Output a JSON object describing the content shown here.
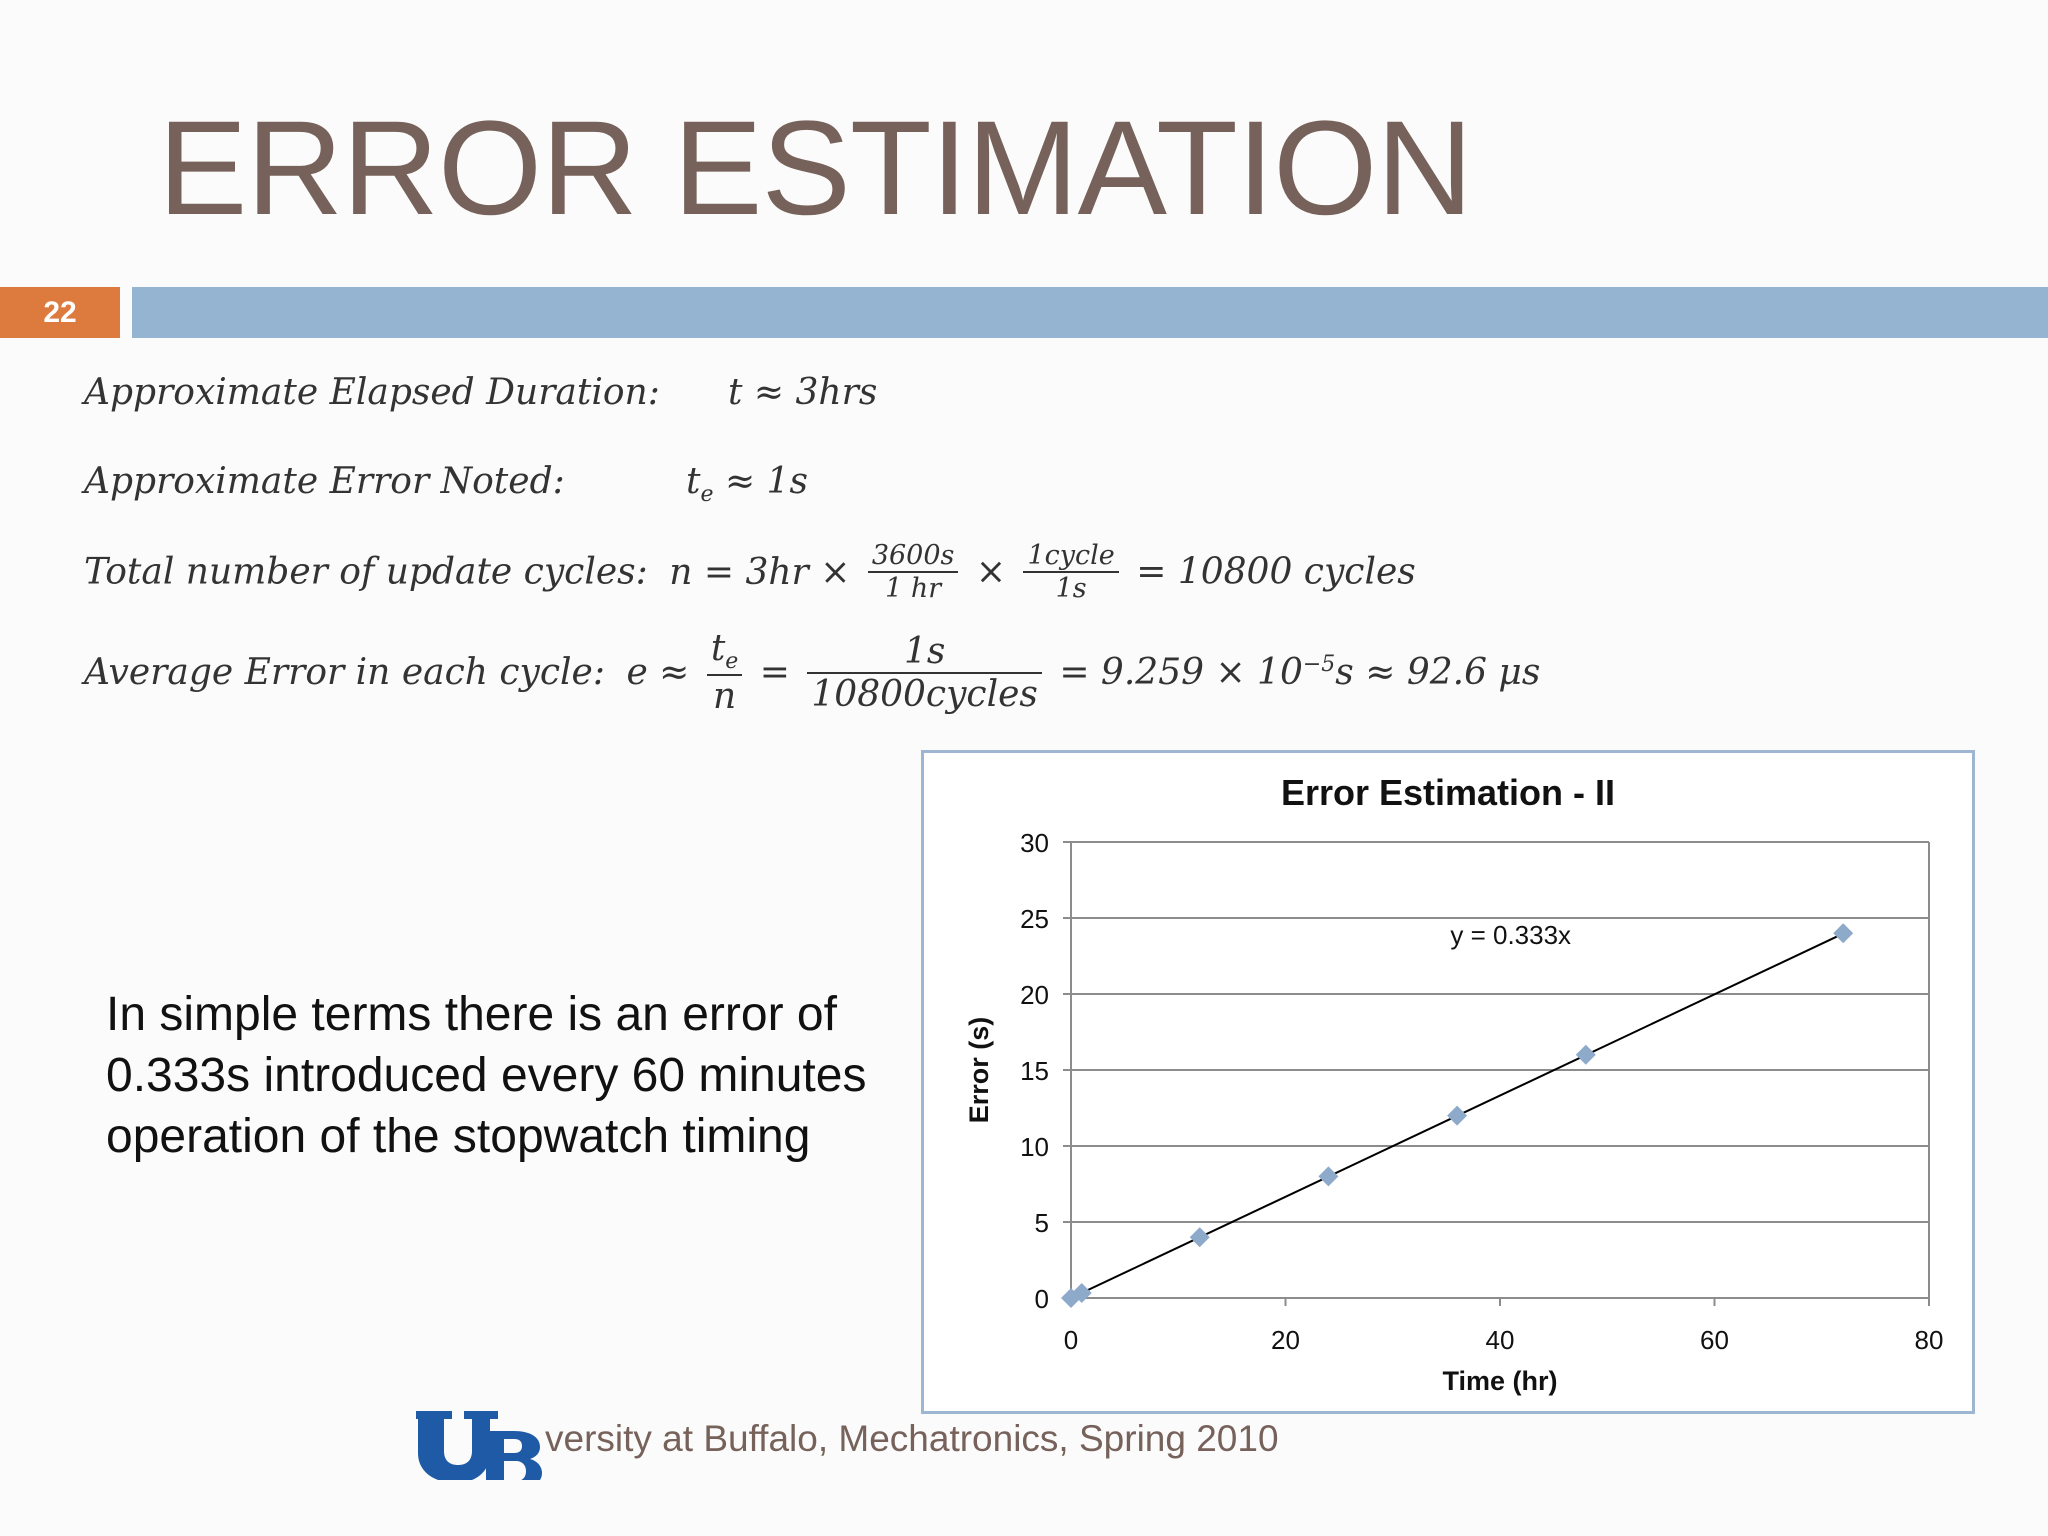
{
  "slide": {
    "title": "ERROR ESTIMATION",
    "number": "22"
  },
  "equations": {
    "line1": {
      "label": "Approximate Elapsed Duration:",
      "value": "t ≈ 3hrs"
    },
    "line2": {
      "label": "Approximate Error Noted:",
      "value_sym": "t",
      "value_sub": "e",
      "value_rest": " ≈ 1s"
    },
    "line3": {
      "label": "Total number of update cycles:",
      "lhs": "n = 3hr ×",
      "frac1_num": "3600s",
      "frac1_den": "1 hr",
      "times": "×",
      "frac2_num": "1cycle",
      "frac2_den": "1s",
      "rhs": "= 10800 cycles"
    },
    "line4": {
      "label": "Average Error in each cycle:",
      "lhs": "e ≈",
      "frac1_num_sym": "t",
      "frac1_num_sub": "e",
      "frac1_den": "n",
      "eq": "=",
      "frac2_num": "1s",
      "frac2_den": "10800cycles",
      "rhs": "= 9.259 × 10",
      "rhs_exp": "−5",
      "rhs_tail": "s ≈ 92.6 μs"
    }
  },
  "body_text": "In simple terms there is an error of 0.333s introduced every 60 minutes operation of the stopwatch timing",
  "footer": {
    "logo_text": "UB",
    "text": "versity at Buffalo, Mechatronics, Spring 2010"
  },
  "colors": {
    "title": "#76625a",
    "band": "#95b4d2",
    "badge": "#dd7a3e",
    "marker": "#8eaacb",
    "logo": "#1e5aa6"
  },
  "chart_data": {
    "type": "scatter",
    "title": "Error Estimation - II",
    "xlabel": "Time (hr)",
    "ylabel": "Error (s)",
    "xlim": [
      0,
      80
    ],
    "ylim": [
      0,
      30
    ],
    "xticks": [
      0,
      20,
      40,
      60,
      80
    ],
    "yticks": [
      0,
      5,
      10,
      15,
      20,
      25,
      30
    ],
    "grid": "horizontal",
    "points": [
      {
        "x": 0,
        "y": 0
      },
      {
        "x": 1,
        "y": 0.333
      },
      {
        "x": 12,
        "y": 4
      },
      {
        "x": 24,
        "y": 8
      },
      {
        "x": 36,
        "y": 12
      },
      {
        "x": 48,
        "y": 16
      },
      {
        "x": 72,
        "y": 24
      }
    ],
    "trendline": {
      "slope": 0.333,
      "intercept": 0,
      "label": "y = 0.333x",
      "label_at": {
        "x": 41,
        "y": 23.3
      }
    }
  }
}
